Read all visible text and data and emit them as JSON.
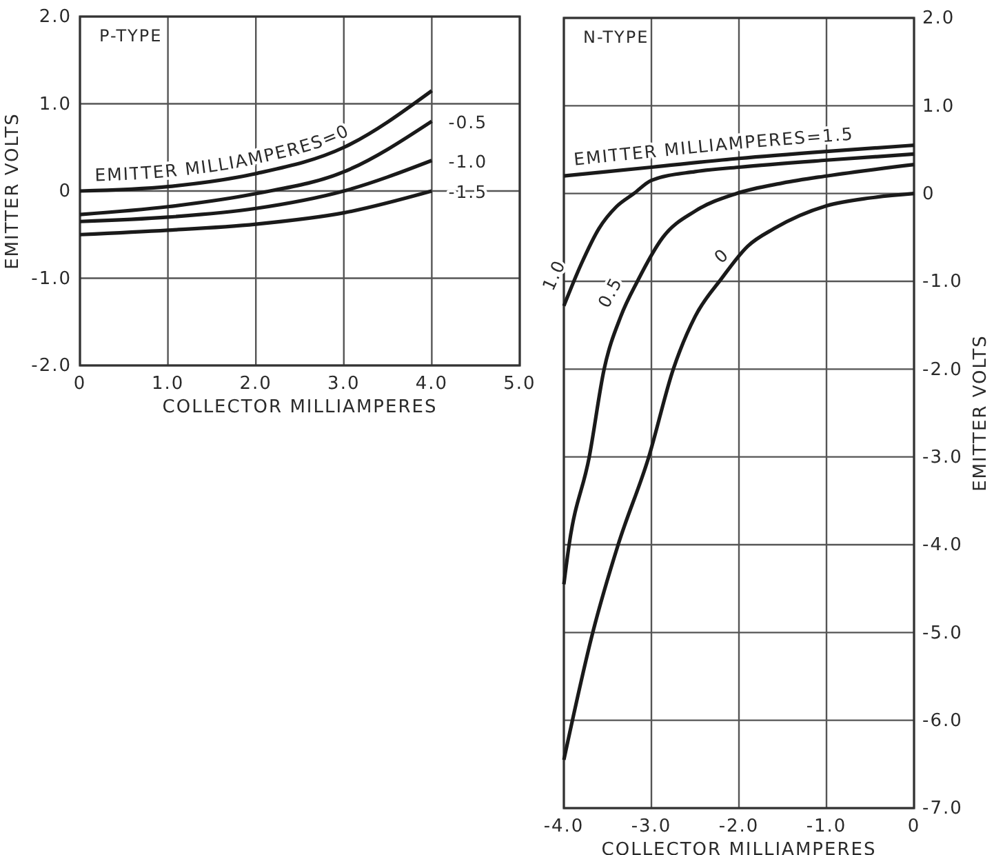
{
  "chart_data": [
    {
      "type": "line",
      "title": "P-TYPE",
      "xlabel": "COLLECTOR MILLIAMPERES",
      "ylabel": "EMITTER VOLTS",
      "x": [
        0,
        1,
        2,
        3,
        4
      ],
      "xlim": [
        0,
        5
      ],
      "xticks": [
        0,
        {
          "value": 1,
          "label": "1.0"
        },
        {
          "value": 2,
          "label": "2.0"
        },
        {
          "value": 3,
          "label": "3.0"
        },
        {
          "value": 4,
          "label": "4.0"
        },
        {
          "value": 5,
          "label": "5.0"
        }
      ],
      "ylim": [
        -2,
        2
      ],
      "yticks": [
        {
          "value": -2,
          "label": "-2.0"
        },
        {
          "value": -1,
          "label": "-1.0"
        },
        0,
        {
          "value": 1,
          "label": "1.0"
        },
        {
          "value": 2,
          "label": "2.0"
        }
      ],
      "grid": true,
      "line_style": "solid",
      "marker": "none",
      "series": [
        {
          "name": "EMITTER MILLIAMPERES=0",
          "color": "#1a1a1a",
          "values": [
            0,
            0.05,
            0.2,
            0.5,
            1.15
          ]
        },
        {
          "name": "-0.5",
          "color": "#1a1a1a",
          "values": [
            -0.27,
            -0.18,
            -0.03,
            0.22,
            0.8
          ]
        },
        {
          "name": "-1.0",
          "color": "#1a1a1a",
          "values": [
            -0.35,
            -0.3,
            -0.2,
            0,
            0.35
          ]
        },
        {
          "name": "-1.5",
          "color": "#1a1a1a",
          "values": [
            -0.5,
            -0.45,
            -0.38,
            -0.25,
            0
          ]
        }
      ]
    },
    {
      "type": "line",
      "title": "N-TYPE",
      "xlabel": "COLLECTOR MILLIAMPERES",
      "y2label": "EMITTER VOLTS",
      "xlim": [
        -4,
        0
      ],
      "xticks": [
        {
          "value": -4,
          "label": "-4.0"
        },
        {
          "value": -3,
          "label": "-3.0"
        },
        {
          "value": -2,
          "label": "-2.0"
        },
        {
          "value": -1,
          "label": "-1.0"
        },
        0
      ],
      "y2lim": [
        -7,
        2
      ],
      "y2ticks": [
        {
          "value": -7,
          "label": "-7.0"
        },
        {
          "value": -6,
          "label": "-6.0"
        },
        {
          "value": -5,
          "label": "-5.0"
        },
        {
          "value": -4,
          "label": "-4.0"
        },
        {
          "value": -3,
          "label": "-3.0"
        },
        {
          "value": -2,
          "label": "-2.0"
        },
        {
          "value": -1,
          "label": "-1.0"
        },
        0,
        {
          "value": 1,
          "label": "1.0"
        },
        {
          "value": 2,
          "label": "2.0"
        }
      ],
      "grid": true,
      "line_style": "solid",
      "marker": "none",
      "series": [
        {
          "name": "EMITTER MILLIAMPERES=1.5",
          "color": "#1a1a1a",
          "axis": "y2",
          "x": [
            -4,
            -3,
            -2,
            -1,
            0
          ],
          "values": [
            0.2,
            0.3,
            0.4,
            0.48,
            0.55
          ]
        },
        {
          "name": "1.0",
          "color": "#1a1a1a",
          "axis": "y2",
          "x": [
            -4,
            -3.8,
            -3.6,
            -3.4,
            -3.2,
            -3,
            -2.5,
            -2,
            -1,
            0
          ],
          "values": [
            -1.28,
            -0.8,
            -0.4,
            -0.15,
            0,
            0.15,
            0.25,
            0.3,
            0.38,
            0.45
          ]
        },
        {
          "name": "0.5",
          "color": "#1a1a1a",
          "axis": "y2",
          "x": [
            -4,
            -3.94,
            -3.71,
            -3.54,
            -3.35,
            -3.16,
            -2.87,
            -2.5,
            -2.03,
            -1.5,
            -1,
            0
          ],
          "values": [
            -4.45,
            -4,
            -3,
            -2,
            -1.4,
            -1,
            -0.5,
            -0.2,
            0,
            0.12,
            0.2,
            0.33
          ]
        },
        {
          "name": "0",
          "color": "#1a1a1a",
          "axis": "y2",
          "x": [
            -4,
            -3.67,
            -3.38,
            -3.03,
            -2.75,
            -2.5,
            -2.2,
            -1.9,
            -1.6,
            -1,
            -0.5,
            0
          ],
          "values": [
            -6.45,
            -5,
            -4,
            -3,
            -2,
            -1.4,
            -0.97,
            -0.6,
            -0.4,
            -0.14,
            -0.05,
            0
          ]
        }
      ]
    }
  ]
}
